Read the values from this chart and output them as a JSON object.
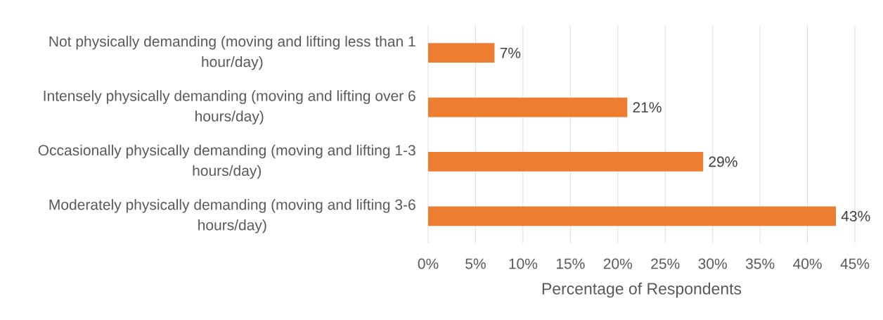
{
  "chart_data": {
    "type": "bar",
    "orientation": "horizontal",
    "categories": [
      "Not physically demanding (moving and lifting less than 1 hour/day)",
      "Intensely physically demanding (moving and lifting over 6 hours/day)",
      "Occasionally physically demanding (moving and lifting 1-3 hours/day)",
      "Moderately physically demanding (moving and lifting 3-6 hours/day)"
    ],
    "values": [
      7,
      21,
      29,
      43
    ],
    "value_labels": [
      "7%",
      "21%",
      "29%",
      "43%"
    ],
    "color": "#ed7d31",
    "xlim": [
      0,
      45
    ],
    "xticks": [
      {
        "value": 0,
        "label": "0%"
      },
      {
        "value": 5,
        "label": "5%"
      },
      {
        "value": 10,
        "label": "10%"
      },
      {
        "value": 15,
        "label": "15%"
      },
      {
        "value": 20,
        "label": "20%"
      },
      {
        "value": 25,
        "label": "25%"
      },
      {
        "value": 30,
        "label": "30%"
      },
      {
        "value": 35,
        "label": "35%"
      },
      {
        "value": 40,
        "label": "40%"
      },
      {
        "value": 45,
        "label": "45%"
      }
    ],
    "xlabel": "Percentage of Respondents",
    "grid": "x"
  }
}
